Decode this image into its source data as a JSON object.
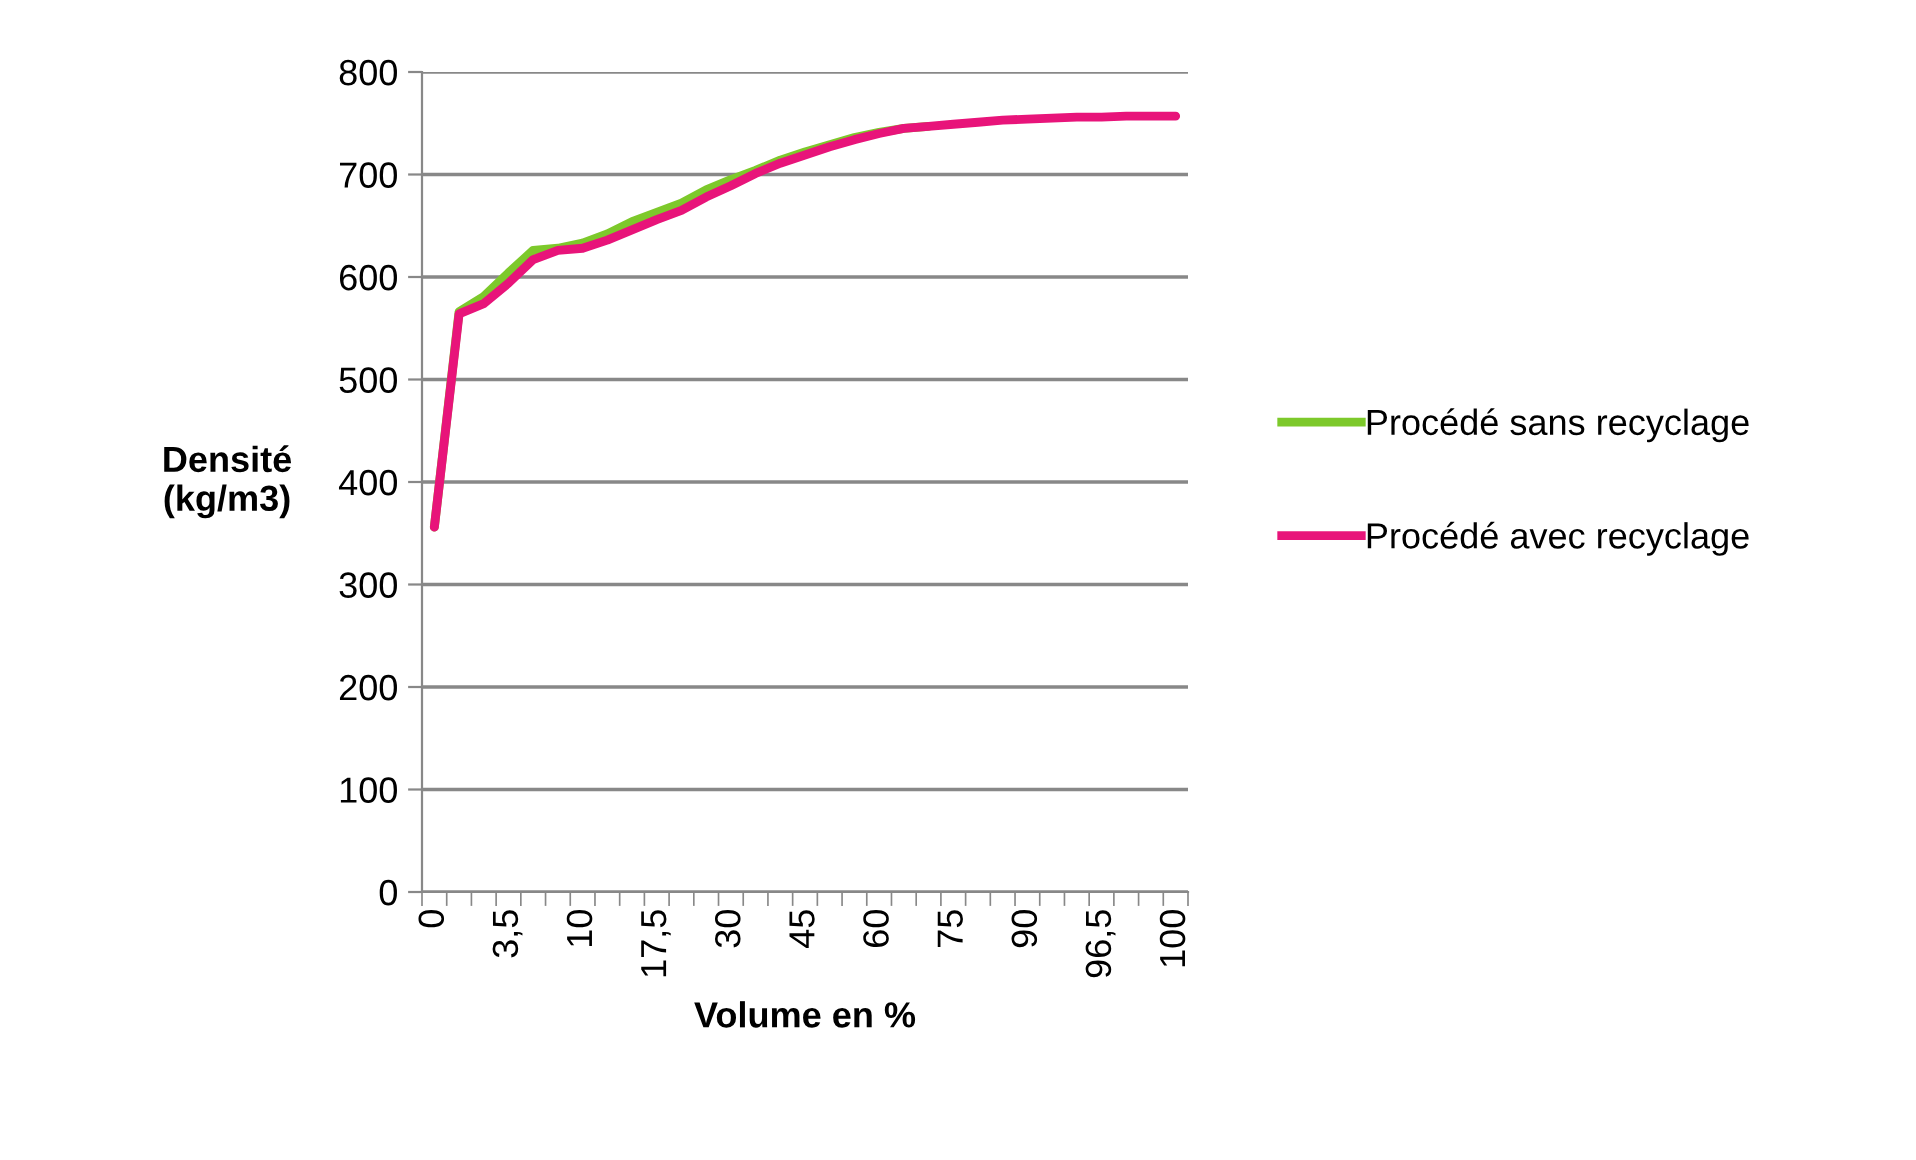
{
  "chart_data": {
    "type": "line",
    "xlabel": "Volume en %",
    "ylabel": "Densité\n(kg/m3)",
    "categories": [
      "0",
      null,
      null,
      "3,5",
      null,
      null,
      "10",
      null,
      null,
      "17,5",
      null,
      null,
      "30",
      null,
      null,
      "45",
      null,
      null,
      "60",
      null,
      null,
      "75",
      null,
      null,
      "90",
      null,
      null,
      "96,5",
      null,
      null,
      "100"
    ],
    "series": [
      {
        "name": "Procédé sans recyclage",
        "color": "#7dc92b",
        "values": [
          356,
          566,
          581,
          604,
          626,
          628,
          633,
          642,
          654,
          663,
          672,
          685,
          695,
          704,
          714,
          722,
          729,
          736,
          741,
          745,
          747,
          null,
          null,
          null,
          null,
          null,
          null,
          null,
          null,
          null,
          null
        ]
      },
      {
        "name": "Procédé avec recyclage",
        "color": "#e8147a",
        "values": [
          356,
          564,
          574,
          594,
          617,
          626,
          628,
          636,
          646,
          656,
          665,
          678,
          689,
          701,
          711,
          719,
          727,
          734,
          740,
          745,
          747,
          749,
          751,
          753,
          754,
          755,
          756,
          756,
          757,
          757,
          757
        ]
      }
    ],
    "ylim": [
      0,
      800
    ],
    "yticks": [
      0,
      100,
      200,
      300,
      400,
      500,
      600,
      700,
      800
    ],
    "grid": "y",
    "legend": "right",
    "marker": "none",
    "line_style": "solid"
  }
}
